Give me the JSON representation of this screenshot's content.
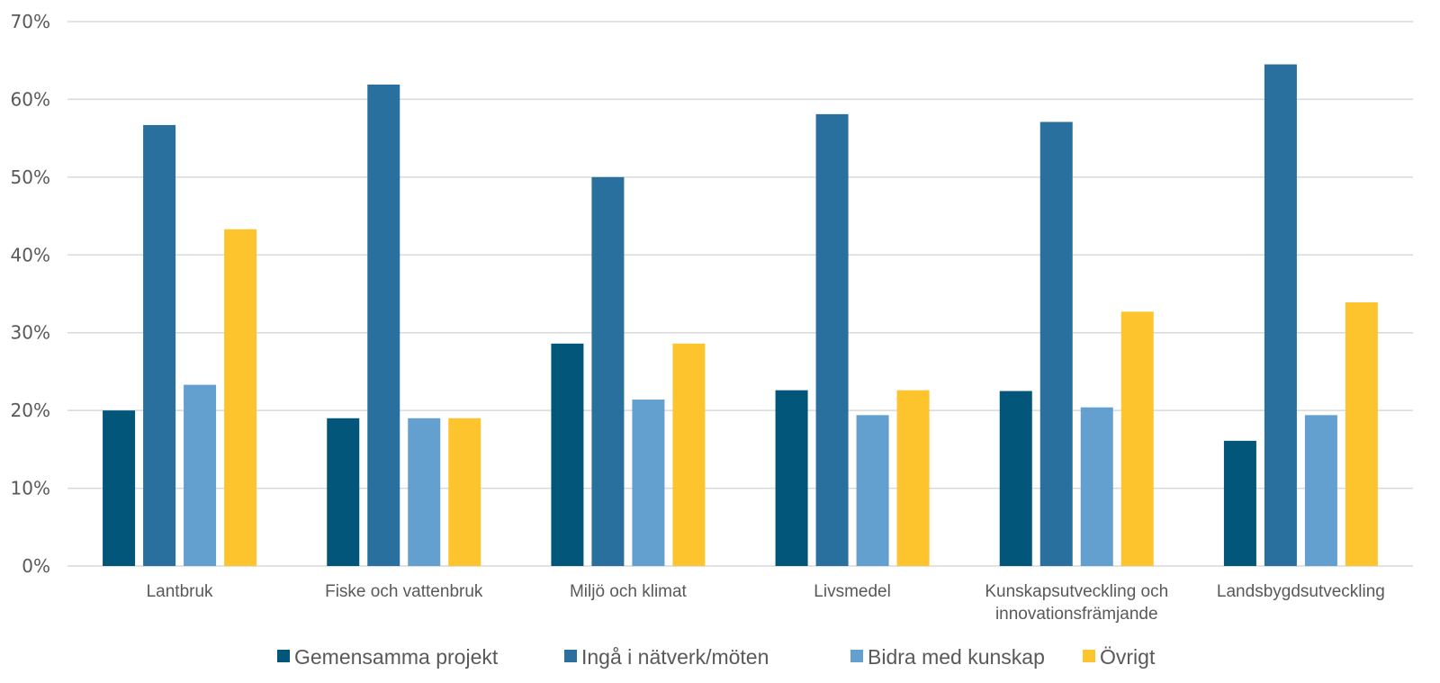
{
  "chart_data": {
    "type": "bar",
    "title": "",
    "xlabel": "",
    "ylabel": "",
    "categories": [
      [
        "Lantbruk"
      ],
      [
        "Fiske och vattenbruk"
      ],
      [
        "Miljö och klimat"
      ],
      [
        "Livsmedel"
      ],
      [
        "Kunskapsutveckling och",
        "innovationsfrämjande"
      ],
      [
        "Landsbygdsutveckling"
      ]
    ],
    "series": [
      {
        "name": "Gemensamma projekt",
        "color": "#02567a",
        "values": [
          20.0,
          19.0,
          28.6,
          22.6,
          22.5,
          16.1
        ]
      },
      {
        "name": "Ingå i nätverk/möten",
        "color": "#29709f",
        "values": [
          56.7,
          61.9,
          50.0,
          58.1,
          57.1,
          64.5
        ]
      },
      {
        "name": "Bidra med kunskap",
        "color": "#63a0cf",
        "values": [
          23.3,
          19.0,
          21.4,
          19.4,
          20.4,
          19.4
        ]
      },
      {
        "name": "Övrigt",
        "color": "#fec42e",
        "values": [
          43.3,
          19.0,
          28.6,
          22.6,
          32.7,
          33.9
        ]
      }
    ],
    "ylim": [
      0,
      70
    ],
    "yticks": [
      0,
      10,
      20,
      30,
      40,
      50,
      60,
      70
    ],
    "ytick_labels": [
      "0%",
      "10%",
      "20%",
      "30%",
      "40%",
      "50%",
      "60%",
      "70%"
    ],
    "grid": true,
    "legend_position": "bottom"
  }
}
